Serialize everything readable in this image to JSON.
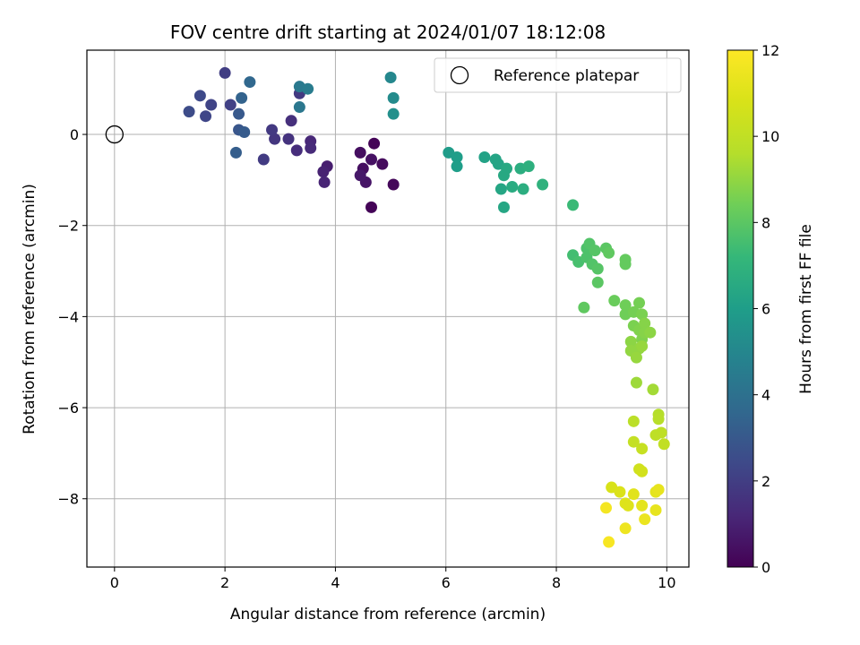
{
  "chart_data": {
    "type": "scatter",
    "title": "FOV centre drift starting at 2024/01/07 18:12:08",
    "xlabel": "Angular distance from reference (arcmin)",
    "ylabel": "Rotation from reference (arcmin)",
    "xlim": [
      -0.5,
      10.4
    ],
    "ylim": [
      -9.5,
      1.85
    ],
    "xticks": [
      0,
      2,
      4,
      6,
      8,
      10
    ],
    "yticks": [
      0,
      -2,
      -4,
      -6,
      -8
    ],
    "grid": true,
    "legend": {
      "placement": "top-right",
      "entries": [
        "Reference platepar"
      ]
    },
    "reference_point": {
      "x": 0,
      "y": 0
    },
    "colorbar": {
      "label": "Hours from first FF file",
      "colormap": "viridis",
      "range": [
        0,
        12
      ],
      "ticks": [
        0,
        2,
        4,
        6,
        8,
        10,
        12
      ]
    },
    "points": [
      {
        "x": 4.7,
        "y": -0.2,
        "t": 0.1
      },
      {
        "x": 4.65,
        "y": -1.6,
        "t": 0.1
      },
      {
        "x": 5.05,
        "y": -1.1,
        "t": 0.2
      },
      {
        "x": 4.85,
        "y": -0.65,
        "t": 0.3
      },
      {
        "x": 4.5,
        "y": -0.75,
        "t": 0.4
      },
      {
        "x": 4.45,
        "y": -0.4,
        "t": 0.4
      },
      {
        "x": 4.65,
        "y": -0.55,
        "t": 0.5
      },
      {
        "x": 4.55,
        "y": -1.05,
        "t": 0.6
      },
      {
        "x": 4.45,
        "y": -0.9,
        "t": 0.7
      },
      {
        "x": 3.85,
        "y": -0.7,
        "t": 0.9
      },
      {
        "x": 3.78,
        "y": -0.82,
        "t": 1.0
      },
      {
        "x": 3.8,
        "y": -1.05,
        "t": 1.1
      },
      {
        "x": 3.55,
        "y": -0.15,
        "t": 1.2
      },
      {
        "x": 3.55,
        "y": -0.3,
        "t": 1.3
      },
      {
        "x": 3.3,
        "y": -0.35,
        "t": 1.4
      },
      {
        "x": 3.2,
        "y": 0.3,
        "t": 1.5
      },
      {
        "x": 3.15,
        "y": -0.1,
        "t": 1.6
      },
      {
        "x": 2.9,
        "y": -0.1,
        "t": 1.7
      },
      {
        "x": 2.85,
        "y": 0.1,
        "t": 1.8
      },
      {
        "x": 3.35,
        "y": 0.9,
        "t": 1.8
      },
      {
        "x": 2.7,
        "y": -0.55,
        "t": 1.9
      },
      {
        "x": 2.0,
        "y": 1.35,
        "t": 2.0
      },
      {
        "x": 2.1,
        "y": 0.65,
        "t": 2.1
      },
      {
        "x": 1.75,
        "y": 0.65,
        "t": 2.2
      },
      {
        "x": 1.65,
        "y": 0.4,
        "t": 2.3
      },
      {
        "x": 1.55,
        "y": 0.85,
        "t": 2.4
      },
      {
        "x": 1.35,
        "y": 0.5,
        "t": 2.5
      },
      {
        "x": 2.25,
        "y": 0.1,
        "t": 2.9
      },
      {
        "x": 2.25,
        "y": 0.45,
        "t": 3.0
      },
      {
        "x": 2.35,
        "y": 0.05,
        "t": 3.1
      },
      {
        "x": 2.2,
        "y": -0.4,
        "t": 3.2
      },
      {
        "x": 2.3,
        "y": 0.8,
        "t": 3.4
      },
      {
        "x": 2.45,
        "y": 1.15,
        "t": 3.6
      },
      {
        "x": 3.35,
        "y": 0.6,
        "t": 4.3
      },
      {
        "x": 3.35,
        "y": 1.05,
        "t": 4.4
      },
      {
        "x": 3.5,
        "y": 1.0,
        "t": 4.5
      },
      {
        "x": 5.0,
        "y": 1.25,
        "t": 5.0
      },
      {
        "x": 5.05,
        "y": 0.8,
        "t": 5.2
      },
      {
        "x": 5.05,
        "y": 0.45,
        "t": 5.4
      },
      {
        "x": 6.05,
        "y": -0.4,
        "t": 5.9
      },
      {
        "x": 6.2,
        "y": -0.5,
        "t": 6.0
      },
      {
        "x": 6.2,
        "y": -0.7,
        "t": 6.0
      },
      {
        "x": 6.7,
        "y": -0.5,
        "t": 6.2
      },
      {
        "x": 6.9,
        "y": -0.55,
        "t": 6.3
      },
      {
        "x": 6.95,
        "y": -0.65,
        "t": 6.3
      },
      {
        "x": 7.0,
        "y": -1.2,
        "t": 6.4
      },
      {
        "x": 7.05,
        "y": -1.6,
        "t": 6.4
      },
      {
        "x": 7.05,
        "y": -0.9,
        "t": 6.5
      },
      {
        "x": 7.1,
        "y": -0.75,
        "t": 6.5
      },
      {
        "x": 7.2,
        "y": -1.15,
        "t": 6.6
      },
      {
        "x": 7.35,
        "y": -0.75,
        "t": 6.7
      },
      {
        "x": 7.4,
        "y": -1.2,
        "t": 6.7
      },
      {
        "x": 7.5,
        "y": -0.7,
        "t": 6.8
      },
      {
        "x": 7.75,
        "y": -1.1,
        "t": 6.9
      },
      {
        "x": 8.3,
        "y": -1.55,
        "t": 7.3
      },
      {
        "x": 8.3,
        "y": -2.65,
        "t": 7.5
      },
      {
        "x": 8.4,
        "y": -2.8,
        "t": 7.6
      },
      {
        "x": 8.55,
        "y": -2.7,
        "t": 7.7
      },
      {
        "x": 8.55,
        "y": -2.5,
        "t": 7.7
      },
      {
        "x": 8.6,
        "y": -2.4,
        "t": 7.8
      },
      {
        "x": 8.65,
        "y": -2.85,
        "t": 7.8
      },
      {
        "x": 8.7,
        "y": -2.55,
        "t": 7.9
      },
      {
        "x": 8.75,
        "y": -2.95,
        "t": 7.9
      },
      {
        "x": 8.75,
        "y": -3.25,
        "t": 8.0
      },
      {
        "x": 8.9,
        "y": -2.5,
        "t": 8.0
      },
      {
        "x": 8.95,
        "y": -2.6,
        "t": 8.1
      },
      {
        "x": 8.5,
        "y": -3.8,
        "t": 8.1
      },
      {
        "x": 9.25,
        "y": -2.75,
        "t": 8.2
      },
      {
        "x": 9.25,
        "y": -2.85,
        "t": 8.2
      },
      {
        "x": 9.05,
        "y": -3.65,
        "t": 8.3
      },
      {
        "x": 9.25,
        "y": -3.75,
        "t": 8.4
      },
      {
        "x": 9.25,
        "y": -3.95,
        "t": 8.4
      },
      {
        "x": 9.4,
        "y": -3.9,
        "t": 8.5
      },
      {
        "x": 9.5,
        "y": -3.7,
        "t": 8.5
      },
      {
        "x": 9.55,
        "y": -3.95,
        "t": 8.6
      },
      {
        "x": 9.4,
        "y": -4.2,
        "t": 8.6
      },
      {
        "x": 9.5,
        "y": -4.3,
        "t": 8.7
      },
      {
        "x": 9.55,
        "y": -4.5,
        "t": 8.7
      },
      {
        "x": 9.6,
        "y": -4.15,
        "t": 8.8
      },
      {
        "x": 9.6,
        "y": -4.35,
        "t": 8.8
      },
      {
        "x": 9.7,
        "y": -4.35,
        "t": 8.9
      },
      {
        "x": 9.35,
        "y": -4.55,
        "t": 8.9
      },
      {
        "x": 9.5,
        "y": -4.7,
        "t": 9.0
      },
      {
        "x": 9.35,
        "y": -4.75,
        "t": 9.0
      },
      {
        "x": 9.45,
        "y": -4.9,
        "t": 9.1
      },
      {
        "x": 9.55,
        "y": -4.65,
        "t": 9.1
      },
      {
        "x": 9.45,
        "y": -5.45,
        "t": 9.2
      },
      {
        "x": 9.75,
        "y": -5.6,
        "t": 9.3
      },
      {
        "x": 9.85,
        "y": -6.15,
        "t": 9.6
      },
      {
        "x": 9.85,
        "y": -6.25,
        "t": 9.7
      },
      {
        "x": 9.4,
        "y": -6.3,
        "t": 9.8
      },
      {
        "x": 9.8,
        "y": -6.6,
        "t": 9.9
      },
      {
        "x": 9.9,
        "y": -6.55,
        "t": 9.9
      },
      {
        "x": 9.95,
        "y": -6.8,
        "t": 10.0
      },
      {
        "x": 9.4,
        "y": -6.75,
        "t": 10.1
      },
      {
        "x": 9.55,
        "y": -6.9,
        "t": 10.2
      },
      {
        "x": 9.5,
        "y": -7.35,
        "t": 10.5
      },
      {
        "x": 9.55,
        "y": -7.4,
        "t": 10.6
      },
      {
        "x": 9.0,
        "y": -7.75,
        "t": 10.8
      },
      {
        "x": 9.15,
        "y": -7.85,
        "t": 10.9
      },
      {
        "x": 9.25,
        "y": -8.1,
        "t": 11.0
      },
      {
        "x": 9.3,
        "y": -8.15,
        "t": 11.0
      },
      {
        "x": 9.4,
        "y": -7.9,
        "t": 11.1
      },
      {
        "x": 9.55,
        "y": -8.15,
        "t": 11.2
      },
      {
        "x": 9.8,
        "y": -7.85,
        "t": 11.2
      },
      {
        "x": 9.85,
        "y": -7.8,
        "t": 11.3
      },
      {
        "x": 9.8,
        "y": -8.25,
        "t": 11.3
      },
      {
        "x": 9.6,
        "y": -8.45,
        "t": 11.4
      },
      {
        "x": 9.25,
        "y": -8.65,
        "t": 11.5
      },
      {
        "x": 8.9,
        "y": -8.2,
        "t": 11.7
      },
      {
        "x": 8.95,
        "y": -8.95,
        "t": 11.8
      }
    ]
  }
}
